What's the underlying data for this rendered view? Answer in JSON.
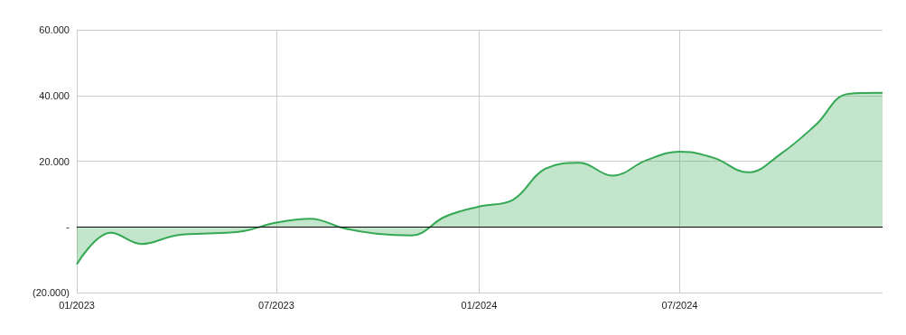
{
  "chart_data": {
    "type": "area",
    "x": [
      "2023-01",
      "2023-02",
      "2023-03",
      "2023-04",
      "2023-05",
      "2023-06",
      "2023-07",
      "2023-08",
      "2023-09",
      "2023-10",
      "2023-11",
      "2023-12",
      "2024-01",
      "2024-02",
      "2024-03",
      "2024-04",
      "2024-05",
      "2024-06",
      "2024-07",
      "2024-08",
      "2024-09",
      "2024-10",
      "2024-11",
      "2024-12",
      "2025-01"
    ],
    "series": [
      {
        "color": "#34a853",
        "values": [
          -11400,
          -1800,
          -5200,
          -2600,
          -2000,
          -1300,
          1300,
          2500,
          -500,
          -2100,
          -2600,
          3100,
          6200,
          8300,
          17700,
          19500,
          15600,
          20300,
          22900,
          21000,
          16600,
          22300,
          30900,
          40500,
          40800
        ]
      }
    ],
    "xlim": [
      "2023-01",
      "2025-01"
    ],
    "xticks": [
      {
        "value": "2023-01",
        "label": "01/2023"
      },
      {
        "value": "2023-07",
        "label": "07/2023"
      },
      {
        "value": "2024-01",
        "label": "01/2024"
      },
      {
        "value": "2024-07",
        "label": "07/2024"
      }
    ],
    "ylim": [
      -20000,
      60000
    ],
    "yticks": [
      {
        "value": -20000,
        "label": "(20.000)"
      },
      {
        "value": 0,
        "label": "-"
      },
      {
        "value": 20000,
        "label": "20.000"
      },
      {
        "value": 40000,
        "label": "40.000"
      },
      {
        "value": 60000,
        "label": "60.000"
      }
    ],
    "ref_lines": [
      {
        "axis": "y",
        "value": 0,
        "color": "#000000"
      }
    ],
    "grid": true,
    "marker": "none"
  }
}
